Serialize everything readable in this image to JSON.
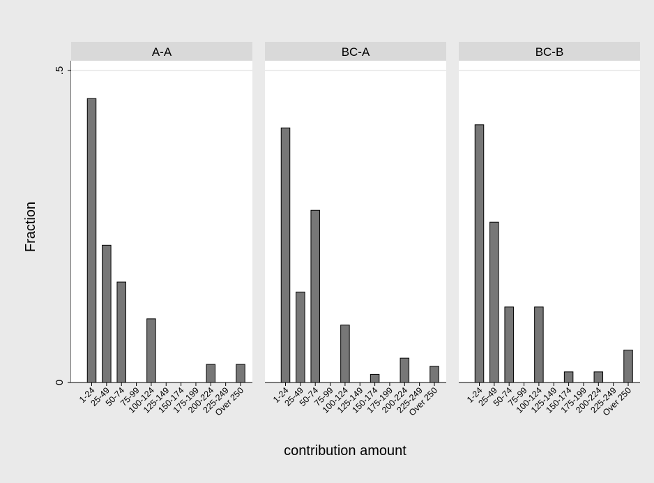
{
  "chart_data": {
    "type": "bar",
    "ylabel": "Fraction",
    "xlabel": "contribution amount",
    "ylim": [
      0,
      0.5
    ],
    "yticks": [
      {
        "value": 0,
        "label": "0"
      },
      {
        "value": 0.5,
        "label": ".5"
      }
    ],
    "categories": [
      "1-24",
      "25-49",
      "50-74",
      "75-99",
      "100-124",
      "125-149",
      "150-174",
      "175-199",
      "200-224",
      "225-249",
      "Over 250"
    ],
    "grid": true,
    "panels": [
      {
        "title": "A-A",
        "values": [
          0.455,
          0.22,
          0.161,
          0,
          0.102,
          0,
          0,
          0,
          0.029,
          0,
          0.029
        ]
      },
      {
        "title": "BC-A",
        "values": [
          0.408,
          0.145,
          0.276,
          0,
          0.092,
          0,
          0.013,
          0,
          0.039,
          0,
          0.026
        ]
      },
      {
        "title": "BC-B",
        "values": [
          0.413,
          0.257,
          0.121,
          0,
          0.121,
          0,
          0.017,
          0,
          0.017,
          0,
          0.052
        ]
      }
    ]
  }
}
